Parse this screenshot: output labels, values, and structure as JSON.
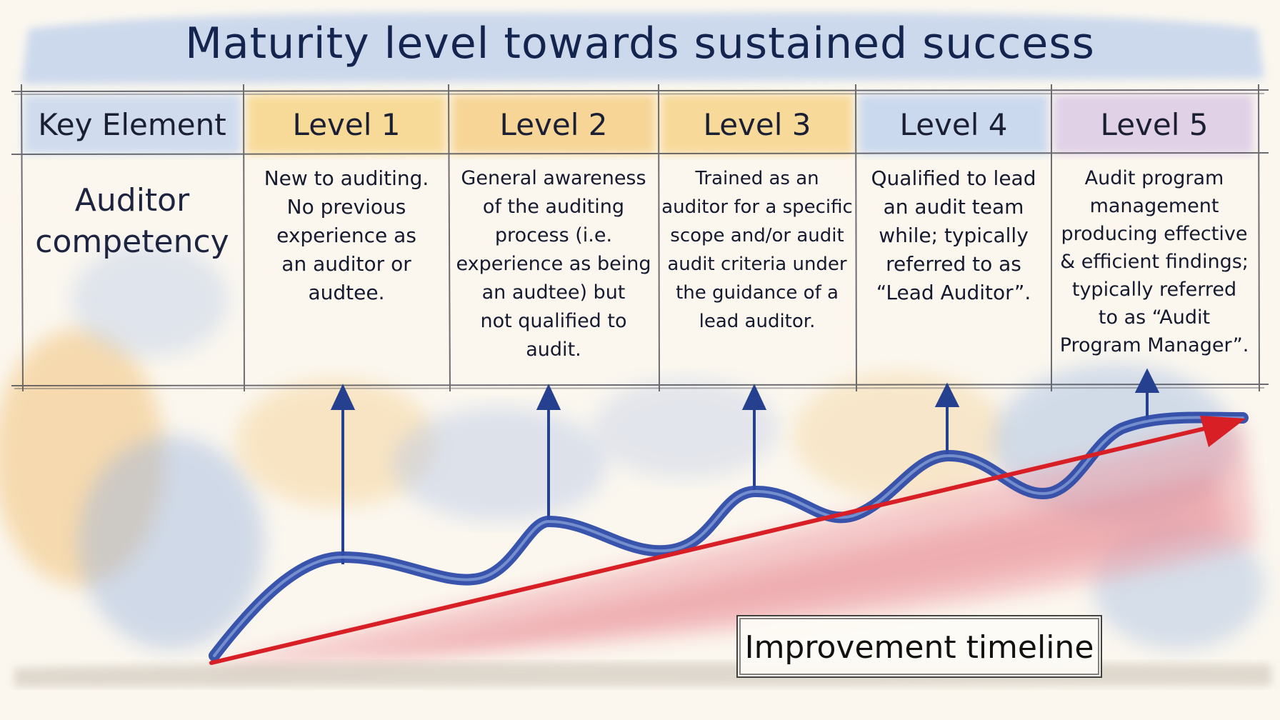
{
  "title": "Maturity level towards sustained success",
  "header": {
    "key_element": "Key Element",
    "levels": [
      "Level 1",
      "Level 2",
      "Level 3",
      "Level 4",
      "Level 5"
    ]
  },
  "row": {
    "label": "Auditor\ncompetency",
    "descriptions": [
      "New to auditing.\nNo previous\nexperience as\nan auditor or\naudtee.",
      "General awareness\nof the auditing\nprocess (i.e.\nexperience as being\nan audtee) but\nnot qualified to\naudit.",
      "Trained as an\nauditor for a specific\nscope and/or audit\naudit criteria under\nthe guidance of a\nlead auditor.",
      "Qualified to lead\nan audit team\nwhile; typically\nreferred to as\n“Lead Auditor”.",
      "Audit program\nmanagement\nproducing effective\n& efficient findings;\ntypically referred\nto as “Audit\nProgram Manager”."
    ]
  },
  "timeline_label": "Improvement timeline",
  "colors": {
    "title_band": "#c9d8ee",
    "level_1": "#f7d98f",
    "level_2": "#f6d38a",
    "level_3": "#f7d58c",
    "level_4": "#c6d6ee",
    "level_5": "#dccbe6",
    "wave": "#2e4ba8",
    "trend_arrow": "#d81f26",
    "arrows": "#24408f"
  }
}
